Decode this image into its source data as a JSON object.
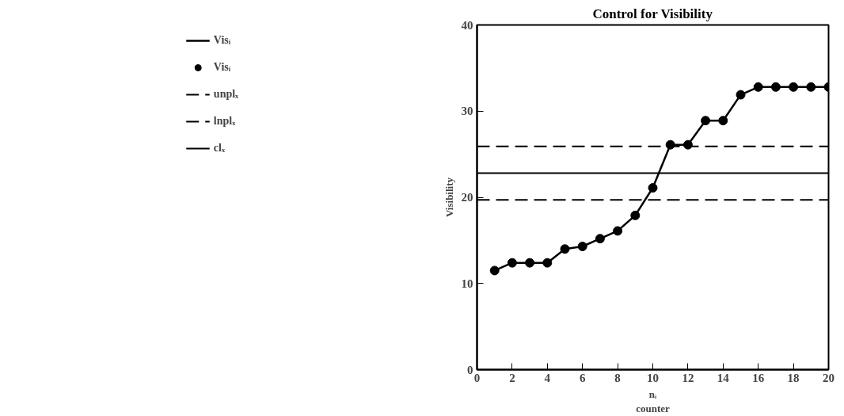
{
  "chart_data": {
    "type": "line",
    "title": "Control for Visibility",
    "xlabel": "nᵢ\ncounter",
    "ylabel": "Visibility",
    "x": [
      1,
      2,
      3,
      4,
      5,
      6,
      7,
      8,
      9,
      10,
      11,
      12,
      13,
      14,
      15,
      16,
      17,
      18,
      19,
      20
    ],
    "series": [
      {
        "name": "Visᵢ",
        "color": "#000000",
        "values": [
          11.5,
          12.4,
          12.4,
          12.4,
          14.0,
          14.3,
          15.2,
          16.1,
          17.9,
          21.1,
          26.1,
          26.1,
          28.9,
          28.9,
          31.9,
          32.8,
          32.8,
          32.8,
          32.8,
          32.8
        ]
      }
    ],
    "marker": "circle",
    "line_style": "solid",
    "ref_lines": [
      {
        "axis": "y",
        "value": 25.9,
        "label": "unplₓ",
        "line_style": "dashed",
        "color": "#000000"
      },
      {
        "axis": "y",
        "value": 19.7,
        "label": "lnplₓ",
        "line_style": "dashed",
        "color": "#000000"
      },
      {
        "axis": "y",
        "value": 22.8,
        "label": "clₓ",
        "line_style": "solid",
        "color": "#000000"
      }
    ],
    "xlim": [
      0,
      20
    ],
    "ylim": [
      0,
      40
    ],
    "xticks": [
      0,
      2,
      4,
      6,
      8,
      10,
      12,
      14,
      16,
      18,
      20
    ],
    "yticks": [
      0,
      10,
      20,
      30,
      40
    ],
    "grid": false,
    "legend": "left"
  }
}
